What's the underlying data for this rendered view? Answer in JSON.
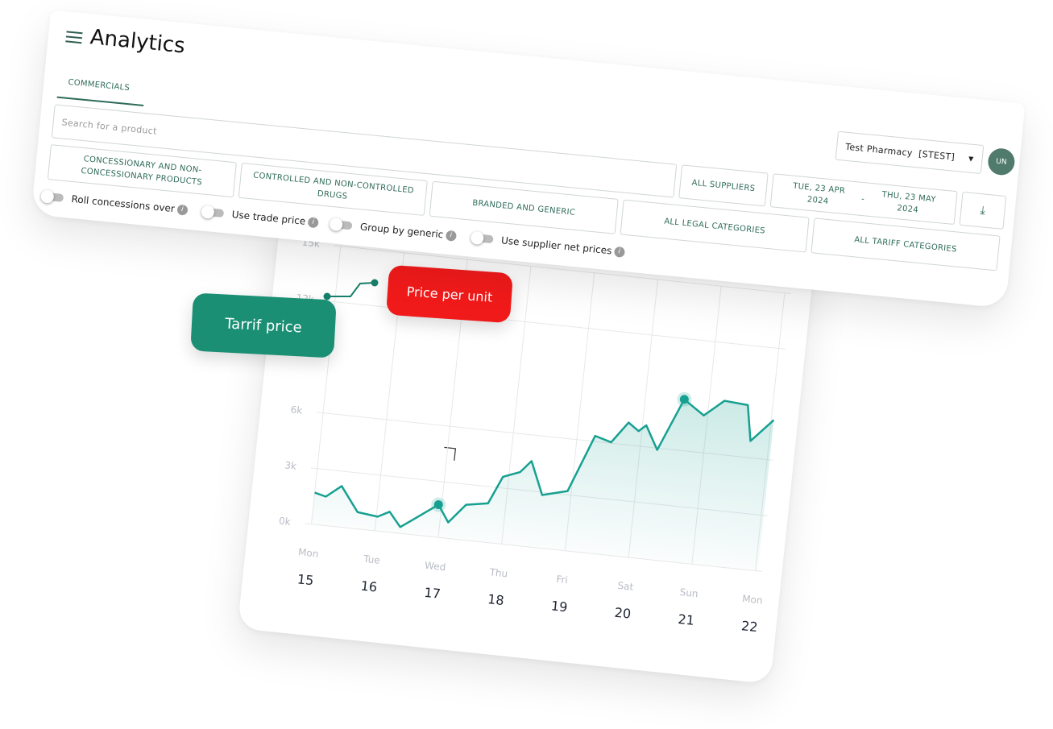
{
  "header": {
    "title": "Analytics"
  },
  "tabs": [
    "COMMERCIALS"
  ],
  "search_placeholder": "Search for a product",
  "pharmacy": "Test Pharmacy  [STEST]",
  "avatar": "UN",
  "suppliers": "ALL SUPPLIERS",
  "date_range": {
    "start": "TUE, 23 APR 2024",
    "separator": "-",
    "end": "THU, 23 MAY 2024"
  },
  "filters": [
    "CONCESSIONARY AND NON-CONCESSIONARY PRODUCTS",
    "CONTROLLED AND NON-CONTROLLED DRUGS",
    "BRANDED AND GENERIC",
    "ALL LEGAL CATEGORIES",
    "ALL TARIFF CATEGORIES"
  ],
  "toggles": [
    "Roll concessions over",
    "Use trade price",
    "Group by generic",
    "Use supplier net prices"
  ],
  "badges": {
    "tariff": "Tarrif price",
    "price_per_unit": "Price per unit"
  },
  "chart_data": {
    "type": "line",
    "color": "#17a091",
    "grid": true,
    "x": [
      0,
      0.18,
      0.41,
      0.7,
      1.02,
      1.2,
      1.39,
      1.95,
      2.13,
      2.38,
      2.72,
      2.91,
      3.17,
      3.33,
      3.55,
      3.94,
      4.28,
      4.54,
      4.78,
      4.95,
      5.06,
      5.27,
      5.61,
      5.94,
      6.24,
      6.61,
      6.71,
      7.04
    ],
    "values": [
      1700,
      1550,
      2200,
      900,
      770,
      1100,
      340,
      1750,
      860,
      1900,
      2100,
      3600,
      3950,
      4600,
      2850,
      3200,
      6300,
      6050,
      7200,
      6800,
      7150,
      5900,
      8750,
      8000,
      8900,
      8800,
      6900,
      8150
    ],
    "highlight_indices": [
      7,
      22
    ],
    "xlim": [
      -0.1,
      7.1
    ],
    "ylim": [
      0,
      15000
    ],
    "yticks": [
      {
        "value": 0,
        "label": "0k"
      },
      {
        "value": 3000,
        "label": "3k"
      },
      {
        "value": 6000,
        "label": "6k"
      },
      {
        "value": 12000,
        "label": "12k"
      },
      {
        "value": 15000,
        "label": "15k"
      }
    ],
    "xticks": [
      {
        "value": 0,
        "label": "15"
      },
      {
        "value": 1,
        "label": "16"
      },
      {
        "value": 2,
        "label": "17"
      },
      {
        "value": 3,
        "label": "18"
      },
      {
        "value": 4,
        "label": "19"
      },
      {
        "value": 5,
        "label": "20"
      },
      {
        "value": 6,
        "label": "21"
      },
      {
        "value": 7,
        "label": "22"
      }
    ],
    "weekdays": [
      "Mon",
      "Tue",
      "Wed",
      "Thu",
      "Fri",
      "Sat",
      "Sun",
      "Mon"
    ]
  }
}
